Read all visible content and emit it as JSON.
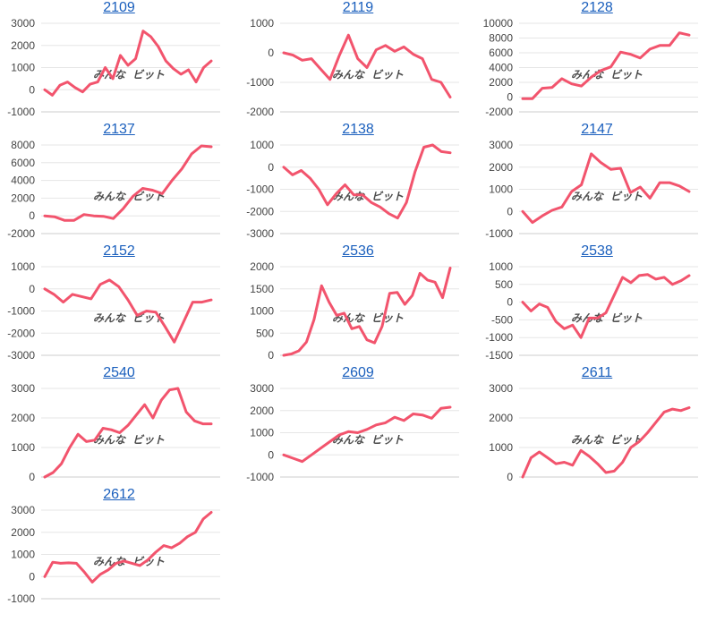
{
  "colors": {
    "line": "#f2546d",
    "title": "#1a5fbd",
    "grid": "#e6e6e6",
    "axis": "#cccccc",
    "watermark_a": "#e8b4b4",
    "watermark_b": "#b8b8b8"
  },
  "watermark": {
    "icon": "site-logo-watermark",
    "text_a": "みんな",
    "text_b": "ビット"
  },
  "chart_data": [
    {
      "type": "line",
      "title": "2109",
      "ylim": [
        -1000,
        3000
      ],
      "yticks": [
        -1000,
        0,
        1000,
        2000,
        3000
      ],
      "values": [
        0,
        -250,
        200,
        350,
        100,
        -100,
        250,
        350,
        1000,
        500,
        1550,
        1100,
        1400,
        2650,
        2400,
        1950,
        1300,
        950,
        700,
        900,
        350,
        1000,
        1300
      ]
    },
    {
      "type": "line",
      "title": "2119",
      "ylim": [
        -2000,
        1000
      ],
      "yticks": [
        -2000,
        -1000,
        0,
        1000
      ],
      "values": [
        0,
        -80,
        -250,
        -200,
        -550,
        -900,
        -100,
        600,
        -200,
        -500,
        100,
        250,
        50,
        200,
        -50,
        -200,
        -900,
        -1000,
        -1500
      ]
    },
    {
      "type": "line",
      "title": "2128",
      "ylim": [
        -2000,
        10000
      ],
      "yticks": [
        -2000,
        0,
        2000,
        4000,
        6000,
        8000,
        10000
      ],
      "values": [
        -200,
        -200,
        1200,
        1300,
        2500,
        1800,
        1500,
        2700,
        3600,
        4100,
        6100,
        5800,
        5300,
        6500,
        7000,
        7000,
        8700,
        8400
      ]
    },
    {
      "type": "line",
      "title": "2137",
      "ylim": [
        -2000,
        8000
      ],
      "yticks": [
        -2000,
        0,
        2000,
        4000,
        6000,
        8000
      ],
      "values": [
        0,
        -100,
        -500,
        -500,
        150,
        0,
        -50,
        -300,
        800,
        2200,
        3100,
        2900,
        2500,
        4000,
        5300,
        7000,
        7900,
        7800
      ]
    },
    {
      "type": "line",
      "title": "2138",
      "ylim": [
        -3000,
        1000
      ],
      "yticks": [
        -3000,
        -2000,
        -1000,
        0,
        1000
      ],
      "values": [
        0,
        -350,
        -150,
        -500,
        -1000,
        -1700,
        -1200,
        -800,
        -1250,
        -1250,
        -1600,
        -1800,
        -2100,
        -2300,
        -1600,
        -200,
        900,
        1000,
        700,
        650
      ]
    },
    {
      "type": "line",
      "title": "2147",
      "ylim": [
        -1000,
        3000
      ],
      "yticks": [
        -1000,
        0,
        1000,
        2000,
        3000
      ],
      "values": [
        0,
        -500,
        -200,
        50,
        200,
        900,
        1200,
        2600,
        2200,
        1900,
        1950,
        850,
        1100,
        600,
        1300,
        1300,
        1150,
        900
      ]
    },
    {
      "type": "line",
      "title": "2152",
      "ylim": [
        -3000,
        1000
      ],
      "yticks": [
        -3000,
        -2000,
        -1000,
        0,
        1000
      ],
      "values": [
        0,
        -250,
        -600,
        -250,
        -350,
        -450,
        200,
        400,
        100,
        -500,
        -1200,
        -1000,
        -1050,
        -1700,
        -2400,
        -1500,
        -600,
        -600,
        -500
      ]
    },
    {
      "type": "line",
      "title": "2536",
      "ylim": [
        0,
        2000
      ],
      "yticks": [
        0,
        500,
        1000,
        1500,
        2000
      ],
      "values": [
        0,
        30,
        100,
        300,
        800,
        1570,
        1200,
        900,
        950,
        600,
        650,
        350,
        280,
        650,
        1400,
        1420,
        1150,
        1350,
        1850,
        1700,
        1650,
        1300,
        1970
      ]
    },
    {
      "type": "line",
      "title": "2538",
      "ylim": [
        -1500,
        1000
      ],
      "yticks": [
        -1500,
        -1000,
        -500,
        0,
        500,
        1000
      ],
      "values": [
        0,
        -250,
        -50,
        -150,
        -550,
        -750,
        -650,
        -1000,
        -450,
        -450,
        -300,
        200,
        700,
        550,
        750,
        780,
        650,
        700,
        500,
        600,
        750
      ]
    },
    {
      "type": "line",
      "title": "2540",
      "ylim": [
        0,
        3000
      ],
      "yticks": [
        0,
        1000,
        2000,
        3000
      ],
      "values": [
        0,
        150,
        450,
        1000,
        1450,
        1200,
        1250,
        1650,
        1600,
        1500,
        1750,
        2100,
        2450,
        2000,
        2600,
        2950,
        3000,
        2200,
        1900,
        1800,
        1800
      ]
    },
    {
      "type": "line",
      "title": "2609",
      "ylim": [
        -1000,
        3000
      ],
      "yticks": [
        -1000,
        0,
        1000,
        2000,
        3000
      ],
      "values": [
        0,
        -150,
        -300,
        0,
        300,
        600,
        900,
        1050,
        1000,
        1150,
        1350,
        1450,
        1700,
        1550,
        1850,
        1800,
        1650,
        2100,
        2150
      ]
    },
    {
      "type": "line",
      "title": "2611",
      "ylim": [
        0,
        3000
      ],
      "yticks": [
        0,
        1000,
        2000,
        3000
      ],
      "values": [
        0,
        650,
        850,
        650,
        450,
        500,
        400,
        900,
        700,
        450,
        150,
        200,
        500,
        1000,
        1200,
        1500,
        1850,
        2200,
        2300,
        2250,
        2350
      ]
    },
    {
      "type": "line",
      "title": "2612",
      "ylim": [
        -1000,
        3000
      ],
      "yticks": [
        -1000,
        0,
        1000,
        2000,
        3000
      ],
      "values": [
        0,
        650,
        600,
        620,
        600,
        200,
        -250,
        100,
        300,
        600,
        700,
        600,
        500,
        750,
        1100,
        1400,
        1300,
        1500,
        1800,
        2000,
        2600,
        2900
      ]
    }
  ]
}
